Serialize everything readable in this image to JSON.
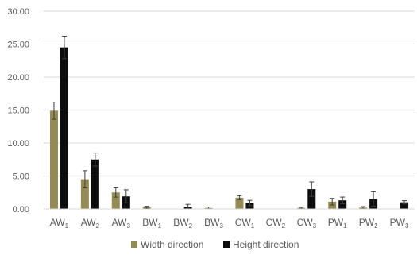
{
  "chart_data": {
    "type": "bar",
    "title": "",
    "xlabel": "",
    "ylabel": "",
    "ylim": [
      0,
      30
    ],
    "y_ticks": [
      "0.00",
      "5.00",
      "10.00",
      "15.00",
      "20.00",
      "25.00",
      "30.00"
    ],
    "y_tick_values": [
      0,
      5,
      10,
      15,
      20,
      25,
      30
    ],
    "grid": true,
    "legend_position": "bottom",
    "categories": [
      "AW",
      "AW",
      "AW",
      "BW",
      "BW",
      "BW",
      "CW",
      "CW",
      "CW",
      "PW",
      "PW",
      "PW"
    ],
    "category_subscripts": [
      "1",
      "2",
      "3",
      "1",
      "2",
      "3",
      "1",
      "2",
      "3",
      "1",
      "2",
      "3"
    ],
    "series": [
      {
        "name": "Width direction",
        "color": "#948A54",
        "values": [
          14.9,
          4.5,
          2.5,
          0.25,
          0,
          0.15,
          1.7,
          0,
          0.15,
          1.1,
          0.2,
          0
        ],
        "errors": [
          1.3,
          1.3,
          0.7,
          0.15,
          0,
          0.15,
          0.3,
          0,
          0.1,
          0.5,
          0.15,
          0
        ]
      },
      {
        "name": "Height direction",
        "color": "#0D0D0D",
        "values": [
          24.5,
          7.5,
          1.9,
          0,
          0.3,
          0,
          0.9,
          0,
          3.0,
          1.3,
          1.5,
          1.0
        ],
        "errors": [
          1.7,
          1.0,
          1.0,
          0,
          0.4,
          0,
          0.4,
          0,
          1.1,
          0.5,
          1.1,
          0.25
        ]
      }
    ]
  }
}
